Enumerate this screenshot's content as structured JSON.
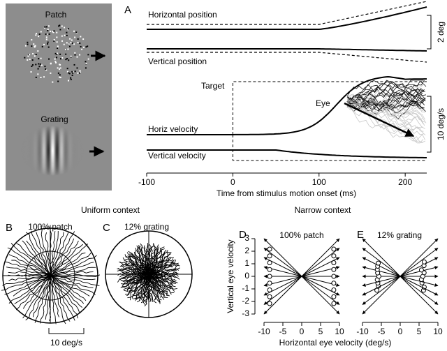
{
  "stimuli": {
    "patch_label": "Patch",
    "grating_label": "Grating"
  },
  "panel_a": {
    "letter": "A",
    "horizontal_position": "Horizontal position",
    "vertical_position": "Vertical position",
    "horiz_velocity": "Horiz velocity",
    "vertical_velocity": "Vertical velocity",
    "target_label": "Target",
    "eye_label": "Eye",
    "position_scale": "2 deg",
    "velocity_scale": "10 deg/s",
    "xlabel": "Time from stimulus motion onset (ms)",
    "xlim": [
      -100,
      225
    ],
    "xticks": [
      -100,
      0,
      100,
      200
    ]
  },
  "uniform": {
    "title": "Uniform context",
    "scale": "10 deg/s",
    "panels": [
      {
        "letter": "B",
        "label": "100% patch"
      },
      {
        "letter": "C",
        "label": "12% grating"
      }
    ]
  },
  "narrow": {
    "title": "Narrow context",
    "xlabel": "Horizontal eye velocity (deg/s)",
    "ylabel": "Vertical eye velocity",
    "xlim": [
      -11,
      11
    ],
    "xticks": [
      -10,
      -5,
      0,
      5,
      10
    ],
    "ylim": [
      -3.3,
      3.3
    ],
    "yticks": [
      3,
      2,
      1,
      0,
      -1,
      -2,
      -3
    ],
    "panels": [
      {
        "letter": "D",
        "label": "100% patch"
      },
      {
        "letter": "E",
        "label": "12% grating"
      }
    ]
  }
}
